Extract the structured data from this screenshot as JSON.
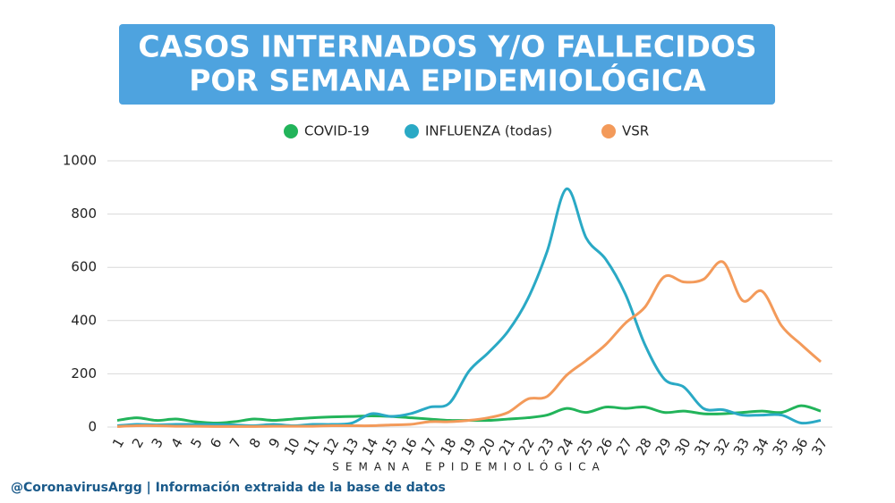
{
  "chart_data": {
    "type": "line",
    "title": [
      "CASOS INTERNADOS Y/O FALLECIDOS",
      "POR SEMANA EPIDEMIOLÓGICA"
    ],
    "x_label": "SEMANA EPIDEMIOLÓGICA",
    "source": "@CoronavirusArgg | Información extraida de la base de datos",
    "categories": [
      "1",
      "2",
      "3",
      "4",
      "5",
      "6",
      "7",
      "8",
      "9",
      "10",
      "11",
      "12",
      "13",
      "14",
      "15",
      "16",
      "17",
      "18",
      "19",
      "20",
      "21",
      "22",
      "23",
      "24",
      "25",
      "26",
      "27",
      "28",
      "29",
      "30",
      "31",
      "32",
      "33",
      "34",
      "35",
      "36",
      "37"
    ],
    "series": [
      {
        "name": "COVID-19",
        "color": "#22b45a",
        "values": [
          25,
          35,
          25,
          30,
          20,
          15,
          20,
          30,
          25,
          30,
          35,
          38,
          40,
          42,
          40,
          35,
          30,
          25,
          25,
          25,
          30,
          35,
          45,
          70,
          55,
          75,
          70,
          75,
          55,
          60,
          50,
          50,
          55,
          60,
          55,
          80,
          60
        ]
      },
      {
        "name": "INFLUENZA (todas)",
        "color": "#2aa9c5",
        "values": [
          5,
          10,
          8,
          10,
          10,
          10,
          8,
          5,
          10,
          5,
          10,
          10,
          15,
          50,
          40,
          50,
          75,
          90,
          210,
          280,
          360,
          480,
          660,
          895,
          710,
          630,
          500,
          310,
          180,
          150,
          70,
          65,
          45,
          45,
          45,
          15,
          25
        ]
      },
      {
        "name": "VSR",
        "color": "#f39a5a",
        "values": [
          2,
          5,
          5,
          3,
          3,
          2,
          2,
          2,
          3,
          3,
          3,
          5,
          5,
          5,
          8,
          10,
          20,
          20,
          25,
          35,
          55,
          105,
          115,
          195,
          250,
          310,
          390,
          450,
          565,
          545,
          555,
          620,
          475,
          510,
          380,
          310,
          245
        ]
      }
    ],
    "ylim": [
      0,
      1000
    ],
    "yticks": [
      0,
      200,
      400,
      600,
      800,
      1000
    ],
    "grid": true
  }
}
